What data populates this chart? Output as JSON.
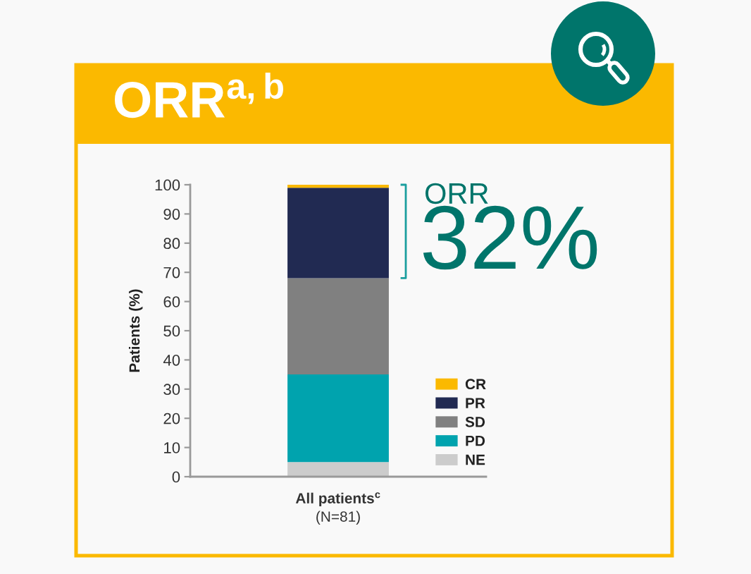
{
  "chart_data": {
    "type": "bar",
    "title": "ORR$^{a,b}$",
    "ylabel": "Patients (%)",
    "categories": [
      "All patients$^{c}$\n(N=81)"
    ],
    "stacked": true,
    "series": [
      {
        "name": "NE",
        "color": "#cccccc",
        "values": [
          5
        ]
      },
      {
        "name": "PD",
        "color": "#00a3ae",
        "values": [
          30
        ]
      },
      {
        "name": "SD",
        "color": "#808080",
        "values": [
          33
        ]
      },
      {
        "name": "PR",
        "color": "#212a52",
        "values": [
          31
        ]
      },
      {
        "name": "CR",
        "color": "#fbb900",
        "values": [
          1
        ]
      }
    ],
    "ylim": [
      0,
      100
    ],
    "yticks": [
      0,
      10,
      20,
      30,
      40,
      50,
      60,
      70,
      80,
      90,
      100
    ],
    "legend": "bottom right",
    "grid": false,
    "annotations": [
      "ORR",
      "32%"
    ]
  }
}
